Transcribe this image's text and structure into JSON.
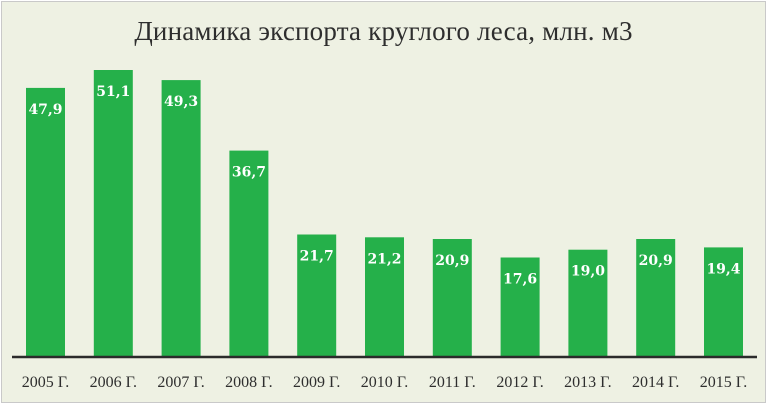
{
  "chart_data": {
    "type": "bar",
    "title": "Динамика экспорта круглого леса, млн. м3",
    "categories": [
      "2005 Г.",
      "2006 Г.",
      "2007 Г.",
      "2008 Г.",
      "2009 Г.",
      "2010 Г.",
      "2011 Г.",
      "2012 Г.",
      "2013 Г.",
      "2014 Г.",
      "2015 Г."
    ],
    "values": [
      47.9,
      51.1,
      49.3,
      36.7,
      21.7,
      21.2,
      20.9,
      17.6,
      19.0,
      20.9,
      19.4
    ],
    "value_labels": [
      "47,9",
      "51,1",
      "49,3",
      "36,7",
      "21,7",
      "21,2",
      "20,9",
      "17,6",
      "19,0",
      "20,9",
      "19,4"
    ],
    "ylim": [
      0,
      51.1
    ],
    "grid": false,
    "legend": "none",
    "bar_color": "#25b04a",
    "axis_color": "#2b2b2b"
  }
}
